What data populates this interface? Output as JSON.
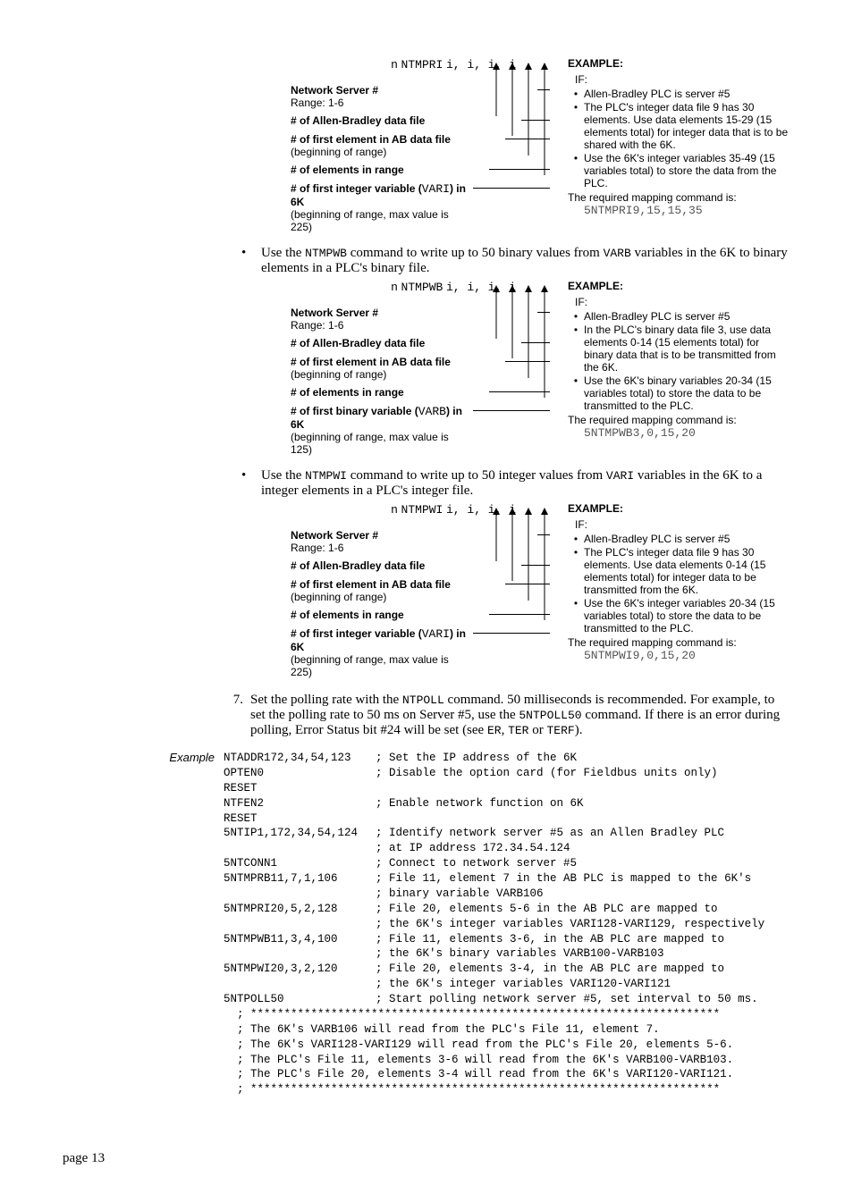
{
  "bullets": {
    "ntmpwb": "Use the NTMPWB command to write up to 50 binary values from VARB variables in the 6K to binary elements in a PLC's binary file.",
    "ntmpwi": "Use the NTMPWI command to write up to 50 integer values from VARI variables in the 6K to a integer elements in a PLC's integer file."
  },
  "blocks": [
    {
      "header_prefix": "n",
      "header_cmd": "NTMPRI",
      "header_args": "i, i, i, i",
      "rows": [
        {
          "l1": "Network Server #",
          "l2": "Range: 1-6",
          "bold1": true
        },
        {
          "l1": "# of Allen-Bradley data file",
          "bold1": true
        },
        {
          "l1": "# of first element in AB data file",
          "l2": "(beginning of range)",
          "bold1": true
        },
        {
          "l1": "# of elements in range",
          "bold1": true
        },
        {
          "l1a": "# of first integer variable (",
          "l1code": "VARI",
          "l1b": ") in 6K",
          "l2": "(beginning of range, max value is 225)",
          "bold1": true
        }
      ],
      "example": {
        "heading": "EXAMPLE:",
        "if": "IF:",
        "items": [
          "Allen-Bradley PLC is server #5",
          "The PLC's integer data file 9 has 30 elements. Use data elements 15-29 (15 elements total) for integer data that is to be shared with the 6K.",
          "Use the 6K's integer variables 35-49 (15 variables total) to store the data from the PLC."
        ],
        "req_line": "The required mapping command is:",
        "req_cmd": "5NTMPRI9,15,15,35"
      }
    },
    {
      "header_prefix": "n",
      "header_cmd": "NTMPWB",
      "header_args": "i, i, i, i",
      "rows": [
        {
          "l1": "Network Server #",
          "l2": "Range: 1-6",
          "bold1": true
        },
        {
          "l1": "# of Allen-Bradley data file",
          "bold1": true
        },
        {
          "l1": "# of first element in AB data file",
          "l2": "(beginning of range)",
          "bold1": true
        },
        {
          "l1": "# of elements in range",
          "bold1": true
        },
        {
          "l1a": "# of first binary variable (",
          "l1code": "VARB",
          "l1b": ") in 6K",
          "l2": "(beginning of range, max value is 125)",
          "bold1": true
        }
      ],
      "example": {
        "heading": "EXAMPLE:",
        "if": "IF:",
        "items": [
          "Allen-Bradley PLC is server #5",
          "In the PLC's binary data file 3, use data elements 0-14 (15 elements total) for binary data that is to be transmitted from the 6K.",
          "Use the 6K's binary variables 20-34 (15 variables total) to store the data to be transmitted to the PLC."
        ],
        "req_line": "The required mapping command is:",
        "req_cmd": "5NTMPWB3,0,15,20"
      }
    },
    {
      "header_prefix": "n",
      "header_cmd": "NTMPWI",
      "header_args": "i, i, i, i",
      "rows": [
        {
          "l1": "Network Server #",
          "l2": "Range: 1-6",
          "bold1": true
        },
        {
          "l1": "# of Allen-Bradley data file",
          "bold1": true
        },
        {
          "l1": "# of first element in AB data file",
          "l2": "(beginning of range)",
          "bold1": true
        },
        {
          "l1": "# of elements in range",
          "bold1": true
        },
        {
          "l1a": "# of first integer variable (",
          "l1code": "VARI",
          "l1b": ") in 6K",
          "l2": "(beginning of range, max value is 225)",
          "bold1": true
        }
      ],
      "example": {
        "heading": "EXAMPLE:",
        "if": "IF:",
        "items": [
          "Allen-Bradley PLC is server #5",
          "The PLC's integer data file 9 has 30 elements. Use data elements 0-14 (15 elements total) for integer data to be transmitted from the 6K.",
          "Use the 6K's integer variables 20-34 (15 variables total) to store the data to be transmitted to the PLC."
        ],
        "req_line": "The required mapping command is:",
        "req_cmd": "5NTMPWI9,0,15,20"
      }
    }
  ],
  "step7": {
    "num": "7.",
    "text_before": "Set the polling rate with the ",
    "code1": "NTPOLL",
    "text_mid1": " command. 50 milliseconds is recommended. For example, to set the polling rate to 50 ms on Server #5, use the ",
    "code2": "5NTPOLL50",
    "text_mid2": " command. If there is an error during polling, Error Status bit #24 will be set (see ",
    "code3": "ER",
    "text_mid3": ", ",
    "code4": "TER",
    "text_mid4": " or ",
    "code5": "TERF",
    "text_after": ")."
  },
  "example_label": "Example",
  "code": {
    "rows": [
      {
        "cmd": "NTADDR172,34,54,123",
        "cmt": "; Set the IP address of the 6K"
      },
      {
        "cmd": "OPTEN0",
        "cmt": "; Disable the option card (for Fieldbus units only)"
      },
      {
        "cmd": "RESET",
        "cmt": ""
      },
      {
        "cmd": "NTFEN2",
        "cmt": "; Enable network function on 6K"
      },
      {
        "cmd": "RESET",
        "cmt": ""
      },
      {
        "cmd": "5NTIP1,172,34,54,124",
        "cmt": "; Identify network server #5 as an Allen Bradley PLC"
      },
      {
        "cmd": "",
        "cmt": "; at IP address 172.34.54.124"
      },
      {
        "cmd": "5NTCONN1",
        "cmt": "; Connect to network server #5"
      },
      {
        "cmd": "5NTMPRB11,7,1,106",
        "cmt": "; File 11, element 7 in the AB PLC is mapped to the 6K's"
      },
      {
        "cmd": "",
        "cmt": "; binary variable VARB106"
      },
      {
        "cmd": "5NTMPRI20,5,2,128",
        "cmt": "; File 20, elements 5-6 in the AB PLC are mapped to"
      },
      {
        "cmd": "",
        "cmt": "; the 6K's integer variables VARI128-VARI129, respectively"
      },
      {
        "cmd": "5NTMPWB11,3,4,100",
        "cmt": "; File 11, elements 3-6, in the AB PLC are mapped to"
      },
      {
        "cmd": "",
        "cmt": "; the 6K's binary variables VARB100-VARB103"
      },
      {
        "cmd": "5NTMPWI20,3,2,120",
        "cmt": "; File 20, elements 3-4, in the AB PLC are mapped to"
      },
      {
        "cmd": "",
        "cmt": "; the 6K's integer variables VARI120-VARI121"
      },
      {
        "cmd": "5NTPOLL50",
        "cmt": "; Start polling network server #5, set interval to 50 ms."
      }
    ],
    "footer": [
      "  ; **********************************************************************",
      "  ; The 6K's VARB106 will read from the PLC's File 11, element 7.",
      "  ; The 6K's VARI128-VARI129 will read from the PLC's File 20, elements 5-6.",
      "  ; The PLC's File 11, elements 3-6 will read from the 6K's VARB100-VARB103.",
      "  ; The PLC's File 20, elements 3-4 will read from the 6K's VARI120-VARI121.",
      "  ; **********************************************************************"
    ]
  },
  "page_number": "page 13"
}
